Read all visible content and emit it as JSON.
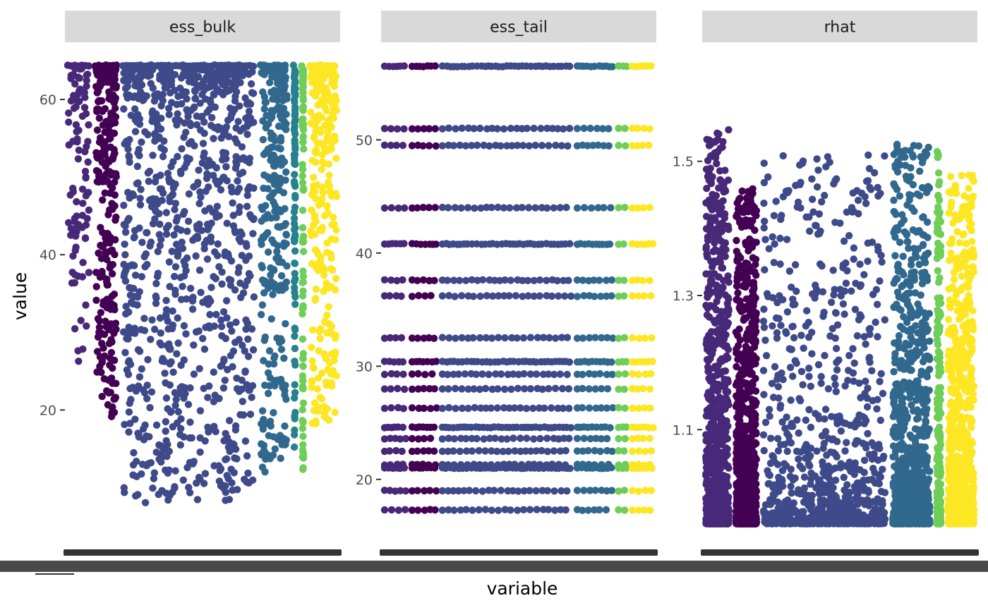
{
  "chart_data": {
    "type": "scatter",
    "xlabel": "variable",
    "ylabel": "value",
    "grid": false,
    "legend": "none",
    "point_color_scale": "viridis (by group within panel)",
    "colors": {
      "strip_fill": "#d9d9d9",
      "viridis": [
        "#440154",
        "#482878",
        "#3e4a89",
        "#31688e",
        "#26828e",
        "#1f9e89",
        "#35b779",
        "#6ece58",
        "#b5de2b",
        "#fde725"
      ]
    },
    "panels": [
      {
        "title": "ess_bulk",
        "ylim": [
          4.5,
          65
        ],
        "yticks": [
          20,
          40,
          60
        ],
        "groups": [
          {
            "color": "#482878",
            "x_band": [
              0.0,
              0.1
            ],
            "y_range": [
              26,
              64
            ],
            "density": "sparse"
          },
          {
            "color": "#440154",
            "x_band": [
              0.1,
              0.2
            ],
            "y_range": [
              19,
              64
            ],
            "density": "medium"
          },
          {
            "color": "#3e4a89",
            "x_band": [
              0.2,
              0.7
            ],
            "y_range": [
              8,
              64
            ],
            "density": "dense"
          },
          {
            "color": "#31688e",
            "x_band": [
              0.7,
              0.82
            ],
            "y_range": [
              12,
              64
            ],
            "density": "medium"
          },
          {
            "color": "#26828e",
            "x_band": [
              0.82,
              0.85
            ],
            "y_range": [
              15,
              64
            ],
            "density": "sparse"
          },
          {
            "color": "#6ece58",
            "x_band": [
              0.85,
              0.88
            ],
            "y_range": [
              12,
              64
            ],
            "density": "sparse"
          },
          {
            "color": "#fde725",
            "x_band": [
              0.88,
              1.0
            ],
            "y_range": [
              18,
              64
            ],
            "density": "medium"
          }
        ]
      },
      {
        "title": "ess_tail",
        "ylim": [
          15.5,
          57
        ],
        "yticks": [
          20,
          30,
          40,
          50
        ],
        "levels": [
          56.5,
          51,
          49.5,
          44,
          40.8,
          37.6,
          36.2,
          32.5,
          30.4,
          29.3,
          28,
          26.3,
          24.6,
          23.6,
          22.5,
          21.3,
          21,
          19,
          17.3
        ],
        "groups": [
          {
            "color": "#482878",
            "x_band": [
              0.0,
              0.1
            ]
          },
          {
            "color": "#440154",
            "x_band": [
              0.1,
              0.21
            ]
          },
          {
            "color": "#3e4a89",
            "x_band": [
              0.21,
              0.7
            ]
          },
          {
            "color": "#31688e",
            "x_band": [
              0.7,
              0.85
            ]
          },
          {
            "color": "#6ece58",
            "x_band": [
              0.85,
              0.9
            ]
          },
          {
            "color": "#fde725",
            "x_band": [
              0.9,
              1.0
            ]
          }
        ]
      },
      {
        "title": "rhat",
        "ylim": [
          0.95,
          1.65
        ],
        "yticks": [
          1.1,
          1.3,
          1.5
        ],
        "groups": [
          {
            "color": "#482878",
            "x_band": [
              0.0,
              0.11
            ],
            "y_range": [
              0.96,
              1.55
            ],
            "density": "dense"
          },
          {
            "color": "#440154",
            "x_band": [
              0.11,
              0.21
            ],
            "y_range": [
              0.96,
              1.46
            ],
            "density": "dense"
          },
          {
            "color": "#3e4a89",
            "x_band": [
              0.21,
              0.68
            ],
            "y_range": [
              0.96,
              1.51
            ],
            "density": "dense"
          },
          {
            "color": "#31688e",
            "x_band": [
              0.68,
              0.84
            ],
            "y_range": [
              0.96,
              1.53
            ],
            "density": "dense"
          },
          {
            "color": "#6ece58",
            "x_band": [
              0.84,
              0.88
            ],
            "y_range": [
              0.96,
              1.52
            ],
            "density": "medium"
          },
          {
            "color": "#fde725",
            "x_band": [
              0.88,
              1.0
            ],
            "y_range": [
              0.96,
              1.48
            ],
            "density": "dense"
          }
        ]
      }
    ]
  }
}
